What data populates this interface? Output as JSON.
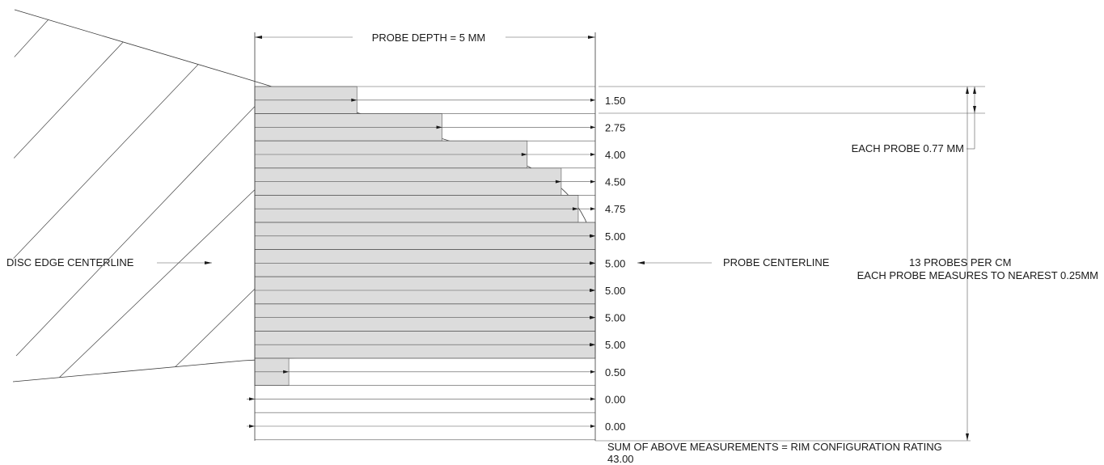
{
  "probe_depth_label": "PROBE DEPTH = 5 MM",
  "each_probe_label": "EACH PROBE 0.77 MM",
  "disc_edge_label": "DISC EDGE CENTERLINE",
  "probe_centerline_label": "PROBE CENTERLINE",
  "probes_per_cm_label": "13 PROBES PER CM",
  "nearest_label": "EACH PROBE MEASURES TO NEAREST 0.25MM",
  "sum_label": "SUM OF ABOVE MEASUREMENTS = RIM CONFIGURATION RATING",
  "sum_value": "43.00",
  "probe_depth_mm": 5,
  "probes": [
    {
      "label": "1.50",
      "value": 1.5
    },
    {
      "label": "2.75",
      "value": 2.75
    },
    {
      "label": "4.00",
      "value": 4.0
    },
    {
      "label": "4.50",
      "value": 4.5
    },
    {
      "label": "4.75",
      "value": 4.75
    },
    {
      "label": "5.00",
      "value": 5.0
    },
    {
      "label": "5.00",
      "value": 5.0
    },
    {
      "label": "5.00",
      "value": 5.0
    },
    {
      "label": "5.00",
      "value": 5.0
    },
    {
      "label": "5.00",
      "value": 5.0
    },
    {
      "label": "0.50",
      "value": 0.5
    },
    {
      "label": "0.00",
      "value": 0.0
    },
    {
      "label": "0.00",
      "value": 0.0
    }
  ]
}
